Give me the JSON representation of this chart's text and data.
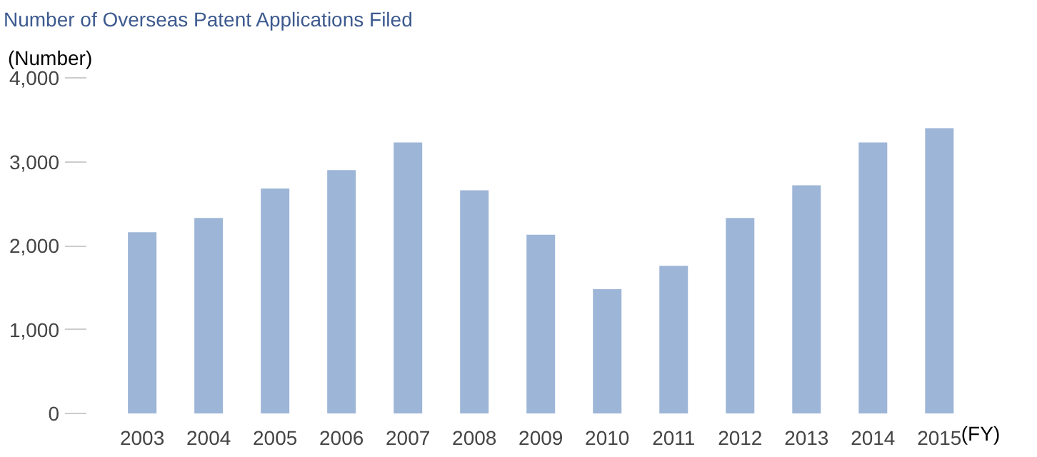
{
  "chart_data": {
    "type": "bar",
    "title": "Number of Overseas Patent Applications Filed",
    "ylabel": "(Number)",
    "xlabel": "(FY)",
    "categories": [
      "2003",
      "2004",
      "2005",
      "2006",
      "2007",
      "2008",
      "2009",
      "2010",
      "2011",
      "2012",
      "2013",
      "2014",
      "2015"
    ],
    "values": [
      2160,
      2330,
      2680,
      2900,
      3230,
      2660,
      2130,
      1480,
      1760,
      2330,
      2720,
      3230,
      3400
    ],
    "color": "#9db5d7",
    "ylim": [
      0,
      4000
    ],
    "yticks": [
      0,
      {
        "value": 1000,
        "label": "1,000"
      },
      {
        "value": 2000,
        "label": "2,000"
      },
      {
        "value": 3000,
        "label": "3,000"
      },
      {
        "value": 4000,
        "label": "4,000"
      }
    ],
    "grid": false
  }
}
